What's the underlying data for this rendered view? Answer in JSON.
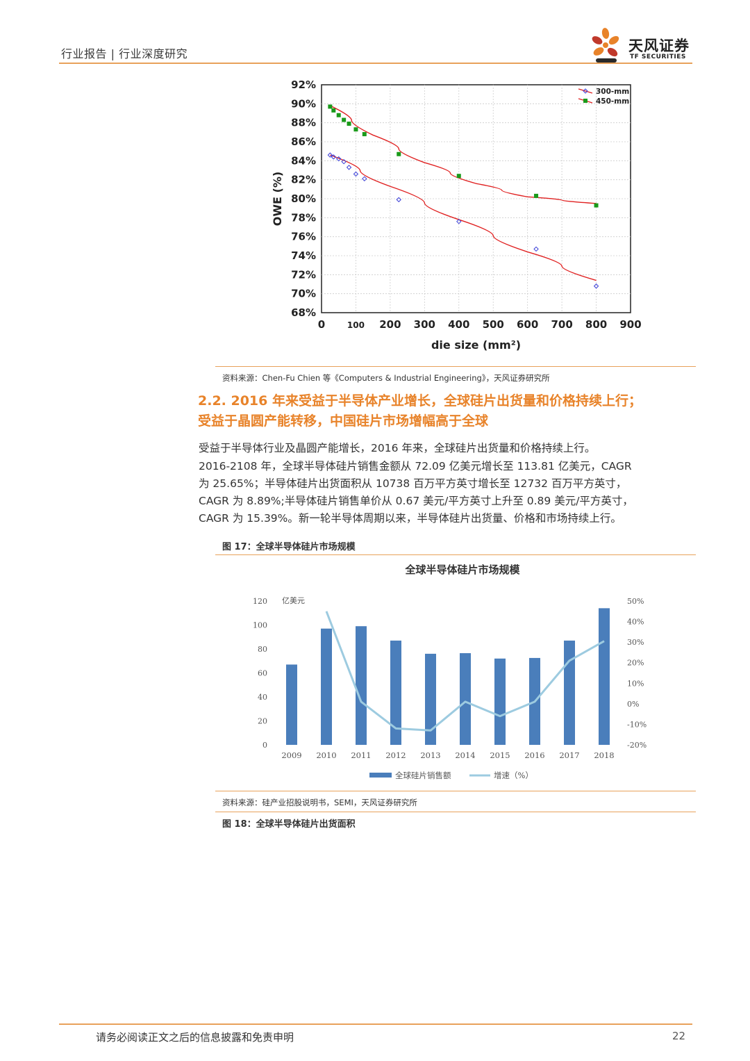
{
  "header": {
    "left_text": "行业报告 | 行业深度研究",
    "logo_cn": "天风证券",
    "logo_en": "TF SECURITIES"
  },
  "figure_owe": {
    "source": "资料来源：Chen-Fu Chien 等《Computers & Industrial Engineering》，天风证券研究所",
    "chart_data": {
      "type": "scatter",
      "xlabel": "die size (mm²)",
      "ylabel": "OWE (%)",
      "xlim": [
        0,
        900
      ],
      "ylim": [
        68,
        92
      ],
      "x_ticks": [
        "0",
        "100",
        "200",
        "300",
        "400",
        "500",
        "600",
        "700",
        "800",
        "900"
      ],
      "y_ticks": [
        "68%",
        "70%",
        "72%",
        "74%",
        "76%",
        "78%",
        "80%",
        "82%",
        "84%",
        "86%",
        "88%",
        "90%",
        "92%"
      ],
      "legend_position": "top-right",
      "series": [
        {
          "name": "300-mm",
          "marker": "open-diamond",
          "color": "#3b3fd8",
          "x": [
            25,
            35,
            50,
            65,
            80,
            100,
            125,
            225,
            400,
            625,
            800
          ],
          "y": [
            84.6,
            84.4,
            84.2,
            83.9,
            83.3,
            82.6,
            82.1,
            79.9,
            77.6,
            74.7,
            70.8
          ],
          "fit": [
            [
              25,
              84.6
            ],
            [
              200,
              81.3
            ],
            [
              400,
              77.8
            ],
            [
              600,
              74.4
            ],
            [
              800,
              71.4
            ]
          ]
        },
        {
          "name": "450-mm",
          "marker": "filled-square",
          "color": "#1a9a1a",
          "x": [
            25,
            35,
            50,
            65,
            80,
            100,
            125,
            225,
            400,
            625,
            800
          ],
          "y": [
            89.7,
            89.3,
            88.8,
            88.3,
            87.9,
            87.3,
            86.8,
            84.7,
            82.4,
            80.3,
            79.3
          ],
          "fit": [
            [
              25,
              89.8
            ],
            [
              150,
              86.7
            ],
            [
              300,
              83.8
            ],
            [
              450,
              81.6
            ],
            [
              600,
              80.2
            ],
            [
              800,
              79.5
            ]
          ]
        }
      ],
      "fit_color": "#e02020"
    }
  },
  "section": {
    "title_line1": "2.2. 2016 年来受益于半导体产业增长，全球硅片出货量和价格持续上行；",
    "title_line2": "受益于晶圆产能转移，中国硅片市场增幅高于全球",
    "body_lines": [
      "受益于半导体行业及晶圆产能增长，2016 年来，全球硅片出货量和价格持续上行。",
      "2016-2108 年，全球半导体硅片销售金额从 72.09 亿美元增长至 113.81 亿美元，CAGR",
      "为 25.65%；半导体硅片出货面积从 10738 百万平方英寸增长至 12732 百万平方英寸，",
      "CAGR 为 8.89%;半导体硅片销售单价从 0.67 美元/平方英寸上升至 0.89 美元/平方英寸，",
      "CAGR 为 15.39%。新一轮半导体周期以来，半导体硅片出货量、价格和市场持续上行。"
    ]
  },
  "figure17": {
    "label": "图 17：全球半导体硅片市场规模",
    "source": "资料来源：硅产业招股说明书，SEMI，天风证券研究所",
    "chart_data": {
      "type": "bar",
      "title": "全球半导体硅片市场规模",
      "unit_label": "亿美元",
      "categories": [
        "2009",
        "2010",
        "2011",
        "2012",
        "2013",
        "2014",
        "2015",
        "2016",
        "2017",
        "2018"
      ],
      "ylim": [
        0,
        120
      ],
      "y_ticks": [
        "0",
        "20",
        "40",
        "60",
        "80",
        "100",
        "120"
      ],
      "y2lim": [
        -20,
        50
      ],
      "y2_ticks": [
        "-20%",
        "-10%",
        "0%",
        "10%",
        "20%",
        "30%",
        "40%",
        "50%"
      ],
      "legend_position": "bottom",
      "series": [
        {
          "name": "全球硅片销售额",
          "kind": "bar",
          "axis": "left",
          "color": "#4a7ebb",
          "values": [
            67,
            97,
            99,
            87,
            76,
            76.5,
            72,
            72.5,
            87,
            114
          ]
        },
        {
          "name": "增速（%）",
          "kind": "line",
          "axis": "right",
          "color": "#9dcbe0",
          "values": [
            null,
            45,
            1,
            -12,
            -13,
            1,
            -6,
            1,
            21,
            30.5
          ]
        }
      ]
    }
  },
  "figure18": {
    "label": "图 18：全球半导体硅片出货面积"
  },
  "footer": {
    "disclaimer": "请务必阅读正文之后的信息披露和免责申明",
    "page_number": "22"
  }
}
